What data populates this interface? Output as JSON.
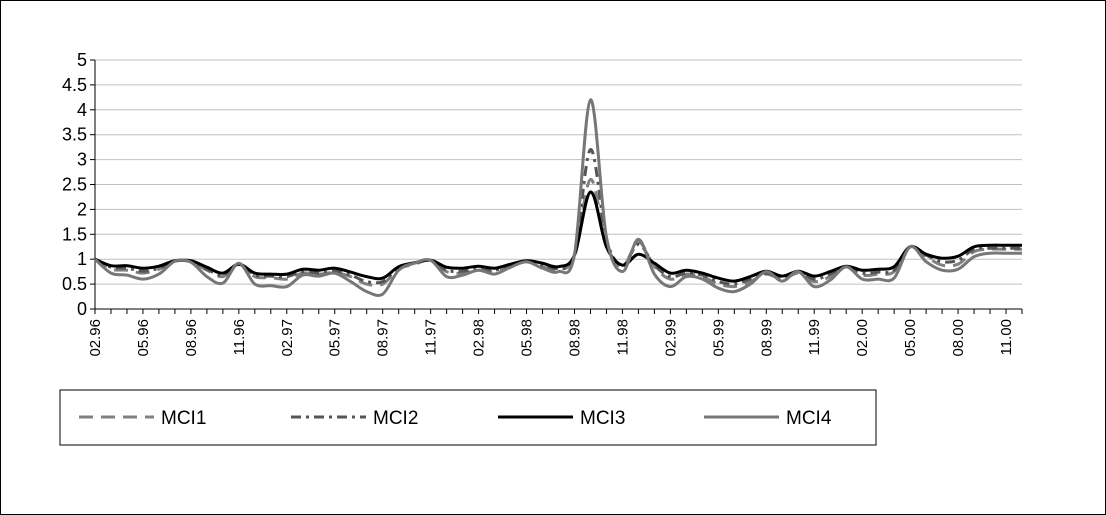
{
  "chart_data": {
    "type": "line",
    "title": "",
    "xlabel": "",
    "ylabel": "",
    "ylim": [
      0,
      5
    ],
    "y_ticks": [
      "0",
      "0.5",
      "1",
      "1.5",
      "2",
      "2.5",
      "3",
      "3.5",
      "4",
      "4.5",
      "5"
    ],
    "grid": "horizontal",
    "legend_position": "bottom",
    "x_tick_labels": [
      "02.96",
      "05.96",
      "08.96",
      "11.96",
      "02.97",
      "05.97",
      "08.97",
      "11.97",
      "02.98",
      "05.98",
      "08.98",
      "11.98",
      "02.99",
      "05.99",
      "08.99",
      "11.99",
      "02.00",
      "05.00",
      "08.00",
      "11.00"
    ],
    "x": [
      "02.96",
      "03.96",
      "04.96",
      "05.96",
      "06.96",
      "07.96",
      "08.96",
      "09.96",
      "10.96",
      "11.96",
      "12.96",
      "01.97",
      "02.97",
      "03.97",
      "04.97",
      "05.97",
      "06.97",
      "07.97",
      "08.97",
      "09.97",
      "10.97",
      "11.97",
      "12.97",
      "01.98",
      "02.98",
      "03.98",
      "04.98",
      "05.98",
      "06.98",
      "07.98",
      "08.98",
      "09.98",
      "10.98",
      "11.98",
      "12.98",
      "01.99",
      "02.99",
      "03.99",
      "04.99",
      "05.99",
      "06.99",
      "07.99",
      "08.99",
      "09.99",
      "10.99",
      "11.99",
      "12.99",
      "01.00",
      "02.00",
      "03.00",
      "04.00",
      "05.00",
      "06.00",
      "07.00",
      "08.00",
      "09.00",
      "10.00",
      "11.00",
      "12.00"
    ],
    "series": [
      {
        "name": "MCI1",
        "color": "#808080",
        "dash": "long-dash",
        "values": [
          1.0,
          0.8,
          0.78,
          0.72,
          0.8,
          0.96,
          0.95,
          0.78,
          0.65,
          0.9,
          0.65,
          0.63,
          0.6,
          0.72,
          0.7,
          0.73,
          0.65,
          0.5,
          0.5,
          0.8,
          0.9,
          0.98,
          0.75,
          0.72,
          0.78,
          0.75,
          0.85,
          0.95,
          0.85,
          0.8,
          1.05,
          2.6,
          1.3,
          0.85,
          1.35,
          0.85,
          0.6,
          0.7,
          0.65,
          0.5,
          0.45,
          0.55,
          0.7,
          0.6,
          0.72,
          0.55,
          0.65,
          0.85,
          0.68,
          0.7,
          0.75,
          1.25,
          1.05,
          0.88,
          0.9,
          1.15,
          1.2,
          1.2,
          1.2
        ]
      },
      {
        "name": "MCI2",
        "color": "#555555",
        "dash": "dash-dot",
        "values": [
          1.0,
          0.84,
          0.82,
          0.76,
          0.82,
          0.96,
          0.96,
          0.8,
          0.68,
          0.9,
          0.68,
          0.66,
          0.65,
          0.75,
          0.72,
          0.76,
          0.68,
          0.55,
          0.55,
          0.82,
          0.92,
          0.98,
          0.78,
          0.76,
          0.82,
          0.78,
          0.88,
          0.96,
          0.88,
          0.82,
          1.08,
          3.2,
          1.4,
          0.88,
          1.3,
          0.88,
          0.65,
          0.72,
          0.68,
          0.55,
          0.5,
          0.6,
          0.72,
          0.62,
          0.74,
          0.6,
          0.7,
          0.85,
          0.72,
          0.74,
          0.78,
          1.25,
          1.08,
          0.95,
          0.98,
          1.2,
          1.22,
          1.22,
          1.22
        ]
      },
      {
        "name": "MCI3",
        "color": "#000000",
        "dash": "solid",
        "values": [
          1.0,
          0.87,
          0.87,
          0.82,
          0.86,
          0.97,
          0.97,
          0.84,
          0.72,
          0.9,
          0.72,
          0.7,
          0.7,
          0.8,
          0.78,
          0.82,
          0.74,
          0.65,
          0.62,
          0.85,
          0.93,
          0.98,
          0.84,
          0.82,
          0.86,
          0.82,
          0.9,
          0.97,
          0.92,
          0.85,
          1.08,
          2.35,
          1.25,
          0.88,
          1.1,
          0.92,
          0.72,
          0.78,
          0.72,
          0.62,
          0.56,
          0.65,
          0.76,
          0.66,
          0.76,
          0.66,
          0.75,
          0.86,
          0.78,
          0.8,
          0.85,
          1.25,
          1.1,
          1.02,
          1.06,
          1.25,
          1.28,
          1.28,
          1.28
        ]
      },
      {
        "name": "MCI4",
        "color": "#777777",
        "dash": "solid",
        "values": [
          1.0,
          0.72,
          0.68,
          0.6,
          0.7,
          0.96,
          0.94,
          0.65,
          0.52,
          0.92,
          0.5,
          0.47,
          0.45,
          0.68,
          0.66,
          0.72,
          0.55,
          0.35,
          0.3,
          0.78,
          0.92,
          0.98,
          0.65,
          0.68,
          0.78,
          0.7,
          0.84,
          0.95,
          0.82,
          0.75,
          1.1,
          4.2,
          1.45,
          0.75,
          1.4,
          0.7,
          0.45,
          0.65,
          0.6,
          0.42,
          0.35,
          0.5,
          0.75,
          0.56,
          0.75,
          0.45,
          0.58,
          0.85,
          0.6,
          0.6,
          0.62,
          1.25,
          0.95,
          0.78,
          0.8,
          1.05,
          1.12,
          1.12,
          1.12
        ]
      }
    ]
  }
}
